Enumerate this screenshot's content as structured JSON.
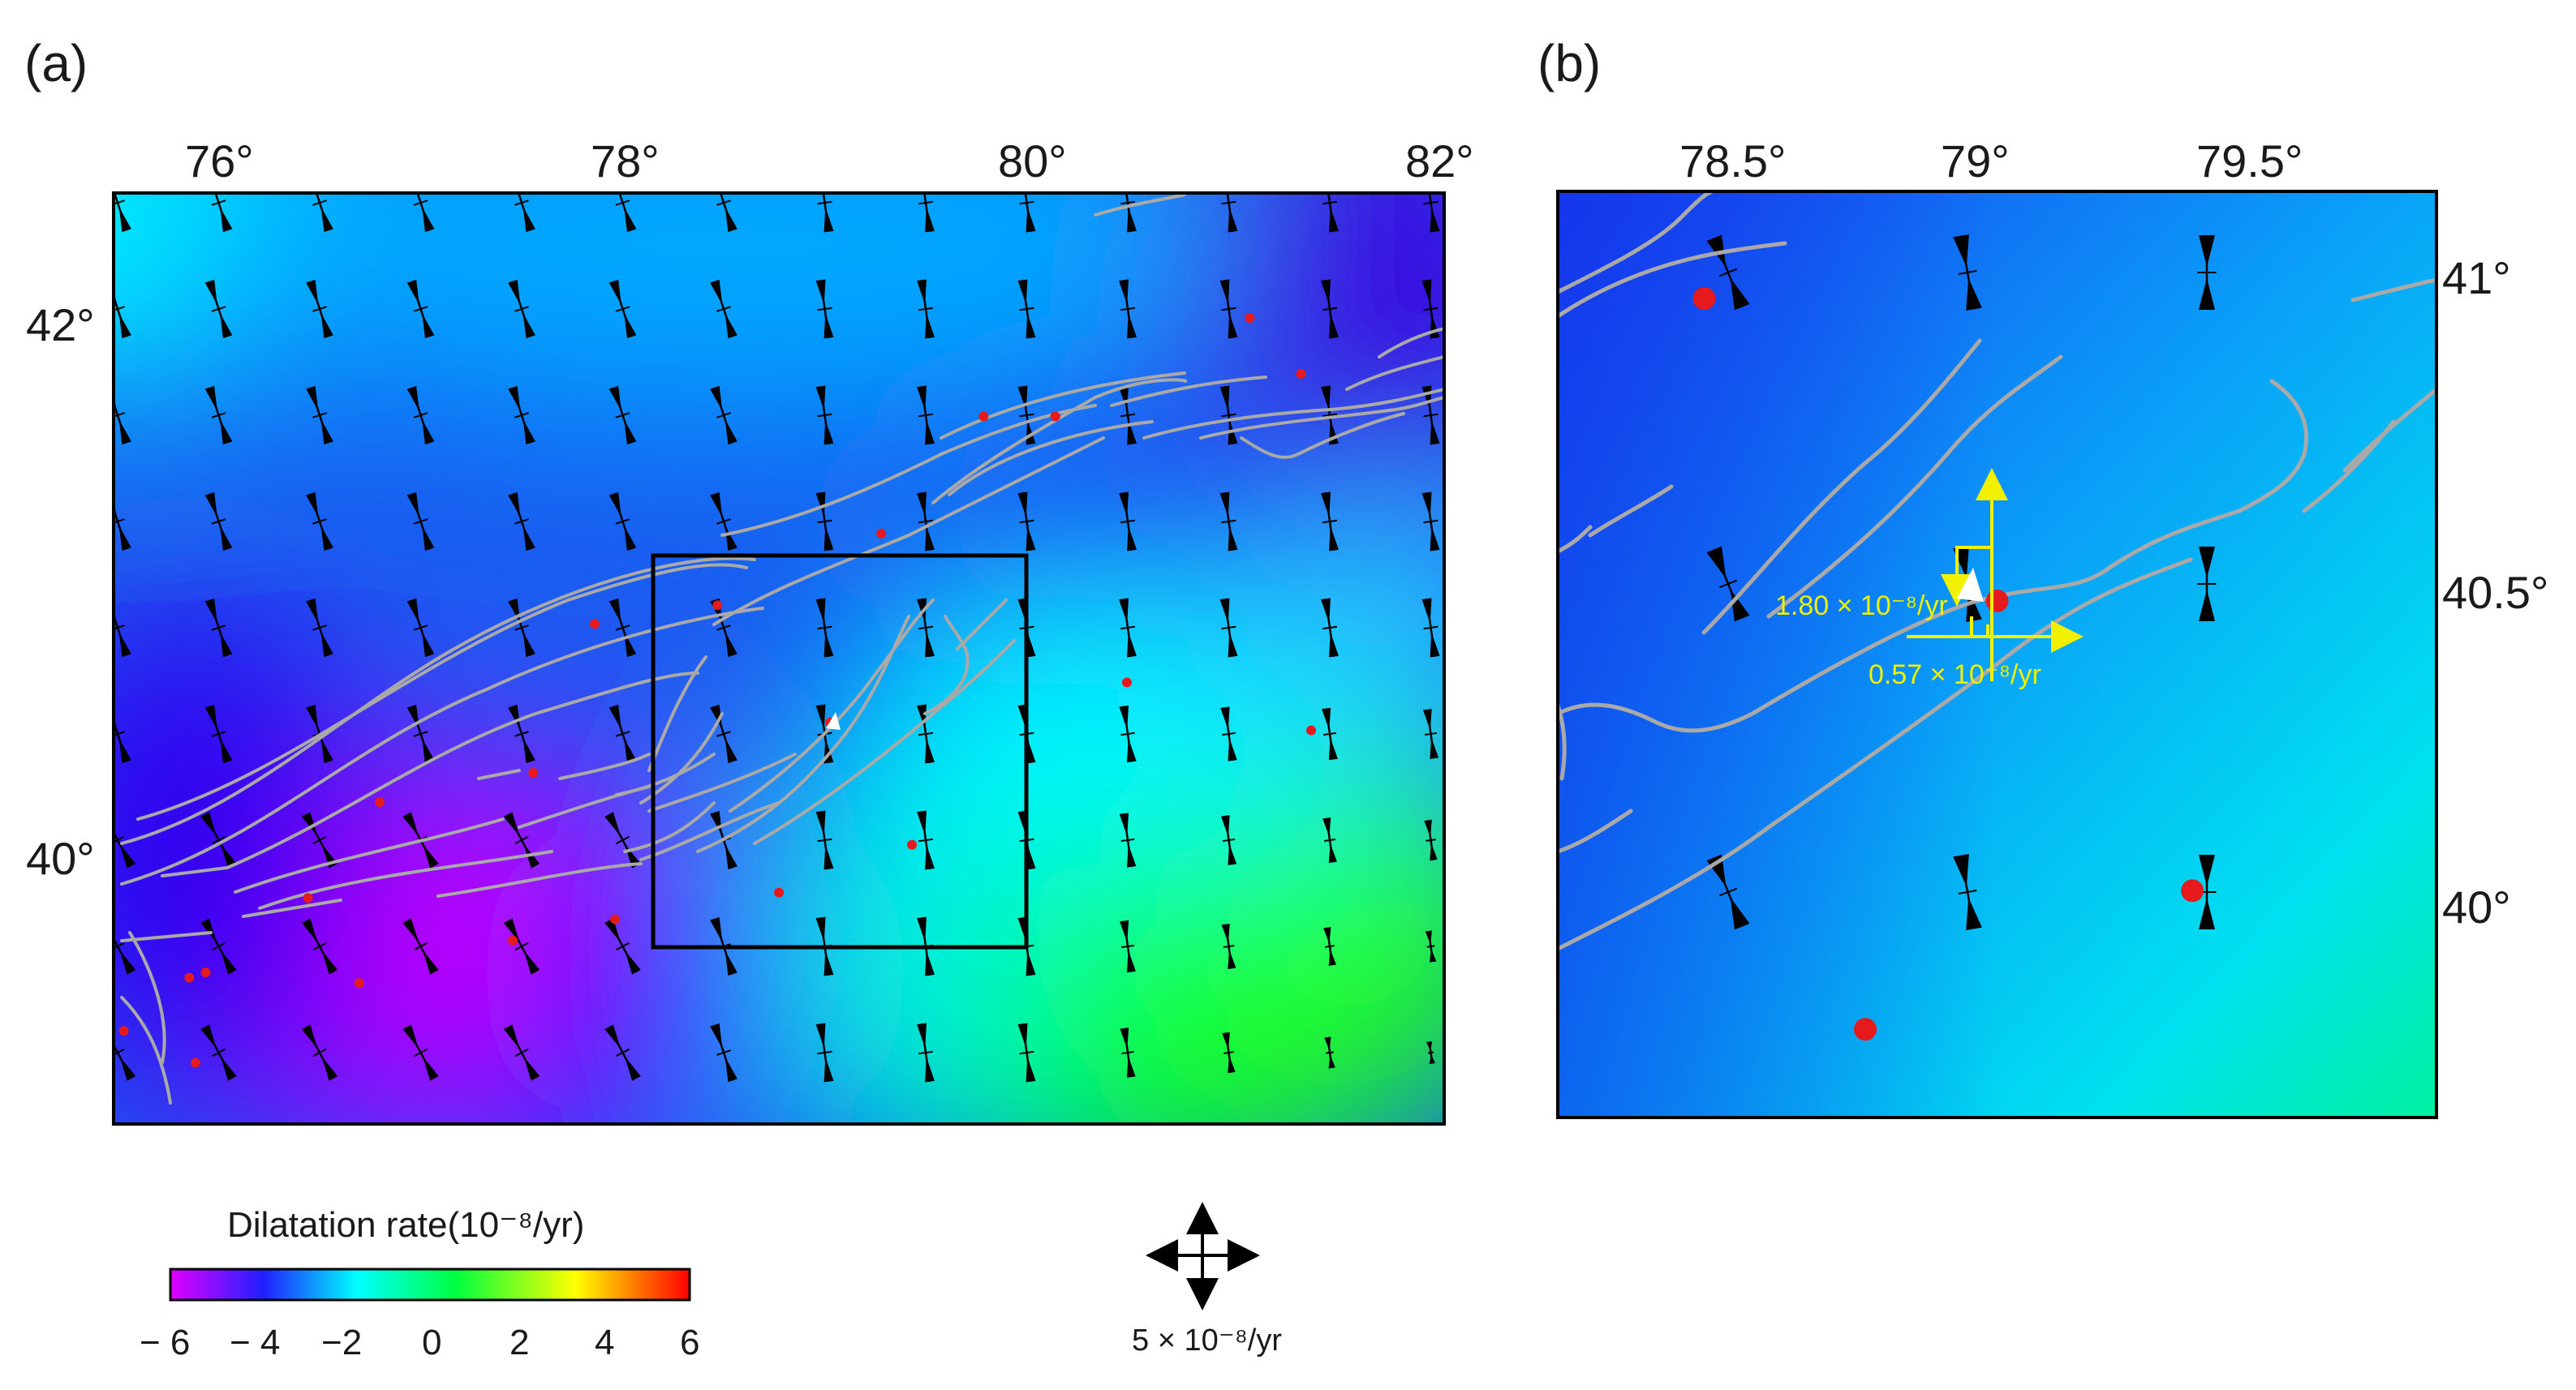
{
  "panels": {
    "a": {
      "label": "(a)",
      "lon_ticks": [
        "76°",
        "78°",
        "80°",
        "82°"
      ],
      "lat_ticks": [
        "42°",
        "40°"
      ],
      "extent": {
        "lon": [
          75.5,
          82.0
        ],
        "lat": [
          39.0,
          42.5
        ]
      },
      "inset_box": {
        "lon": [
          78.13,
          79.95
        ],
        "lat": [
          39.67,
          41.14
        ]
      }
    },
    "b": {
      "label": "(b)",
      "lon_ticks": [
        "78.5°",
        "79°",
        "79.5°"
      ],
      "lat_ticks": [
        "41°",
        "40.5°",
        "40°"
      ],
      "extent": {
        "lon": [
          78.15,
          79.95
        ],
        "lat": [
          39.67,
          41.14
        ]
      },
      "annotations": {
        "principal_strain_1": "1.80 × 10⁻⁸/yr",
        "principal_strain_2": "0.57 × 10⁻⁸/yr"
      }
    }
  },
  "colorbar": {
    "title": "Dilatation rate(10⁻⁸/yr)",
    "ticks": [
      "− 6",
      "− 4",
      "−2",
      "0",
      "2",
      "4",
      "6"
    ],
    "range": [
      -6,
      6
    ],
    "stops": [
      "#e000ff",
      "#2020ff",
      "#00ffff",
      "#00ff40",
      "#ffff00",
      "#ff0000"
    ]
  },
  "scale": {
    "label": "5 × 10⁻⁸/yr"
  },
  "colors": {
    "earthquake": "#e41a1c",
    "fault": "#a9a9a9",
    "strain_axis": "#000000",
    "annotation": "#f0f000",
    "box": "#000000"
  },
  "earthquakes_a": [
    [
      81.05,
      42.03
    ],
    [
      81.3,
      41.82
    ],
    [
      79.75,
      41.66
    ],
    [
      80.1,
      41.66
    ],
    [
      79.25,
      41.22
    ],
    [
      78.45,
      40.95
    ],
    [
      77.85,
      40.88
    ],
    [
      80.45,
      40.66
    ],
    [
      81.35,
      40.48
    ],
    [
      79.0,
      40.51
    ],
    [
      77.55,
      40.32
    ],
    [
      76.8,
      40.21
    ],
    [
      79.4,
      40.05
    ],
    [
      76.45,
      39.85
    ],
    [
      78.75,
      39.87
    ],
    [
      77.45,
      39.69
    ],
    [
      77.95,
      39.77
    ],
    [
      75.95,
      39.57
    ],
    [
      76.7,
      39.53
    ],
    [
      75.87,
      39.55
    ],
    [
      75.55,
      39.35
    ],
    [
      75.9,
      39.23
    ]
  ],
  "earthquakes_b": [
    [
      78.45,
      40.97
    ],
    [
      79.05,
      40.49
    ],
    [
      79.45,
      40.03
    ],
    [
      78.78,
      39.81
    ]
  ]
}
